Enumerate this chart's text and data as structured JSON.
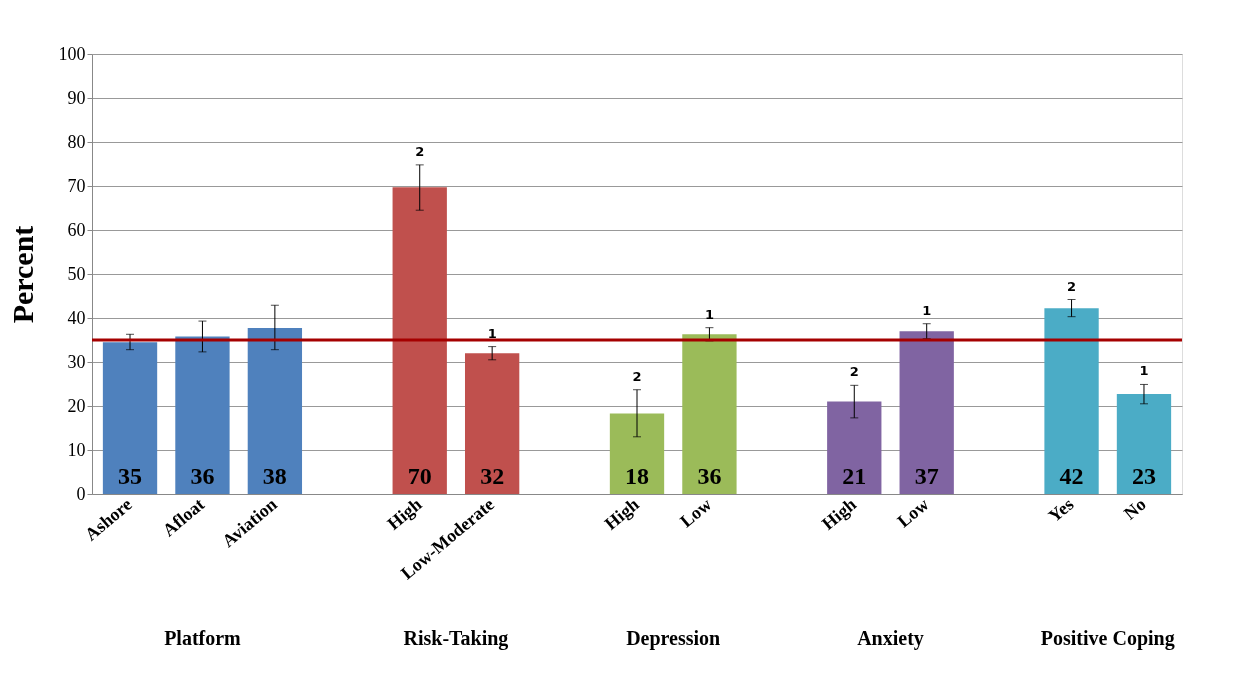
{
  "chart_data": {
    "type": "bar",
    "ylabel": "Percent",
    "categories": [
      "Ashore",
      "Afloat",
      "Aviation",
      null,
      "High",
      "Low-Moderate",
      null,
      "High",
      "Low",
      null,
      "High",
      "Low",
      null,
      "Yes",
      "No"
    ],
    "values": [
      34.5,
      35.8,
      37.7,
      null,
      69.7,
      32.0,
      null,
      18.3,
      36.3,
      null,
      21.0,
      37.0,
      null,
      42.2,
      22.7
    ],
    "colors": [
      "#4f81bd",
      "#4f81bd",
      "#4f81bd",
      null,
      "#c0504d",
      "#c0504d",
      null,
      "#9bbb59",
      "#9bbb59",
      null,
      "#8064a2",
      "#8064a2",
      null,
      "#4bacc6",
      "#4bacc6"
    ],
    "value_labels": [
      "35",
      "36",
      "38",
      null,
      "70",
      "32",
      null,
      "18",
      "36",
      null,
      "21",
      "37",
      null,
      "42",
      "23"
    ],
    "errors": [
      [
        32.8,
        36.3
      ],
      [
        32.3,
        39.3
      ],
      [
        32.8,
        42.9
      ],
      null,
      [
        64.5,
        74.8
      ],
      [
        30.5,
        33.5
      ],
      null,
      [
        13.0,
        23.7
      ],
      [
        34.8,
        37.8
      ],
      null,
      [
        17.3,
        24.7
      ],
      [
        35.3,
        38.7
      ],
      null,
      [
        40.3,
        44.2
      ],
      [
        20.5,
        24.9
      ]
    ],
    "ylim": [
      0,
      100
    ],
    "yticks": [
      0,
      10,
      20,
      30,
      40,
      50,
      60,
      70,
      80,
      90,
      100
    ],
    "grid": "y",
    "ref_lines": [
      {
        "axis": "y",
        "value": 35,
        "color": "#a50000"
      }
    ],
    "annotations": [
      "Platform",
      "Risk-Taking",
      "Depression",
      "Anxiety",
      "Positive Coping",
      {
        "text": "2",
        "x": "High",
        "y": 74.8
      },
      {
        "text": "1",
        "x": "Low-Moderate",
        "y": 33.5
      },
      "2",
      "2",
      "1",
      {
        "text": "1",
        "x": "Low",
        "y": 37.8
      },
      {
        "text": "2",
        "x": "Yes",
        "y": 44.2
      },
      {
        "text": "1",
        "x": "No",
        "y": 24.9
      }
    ]
  }
}
